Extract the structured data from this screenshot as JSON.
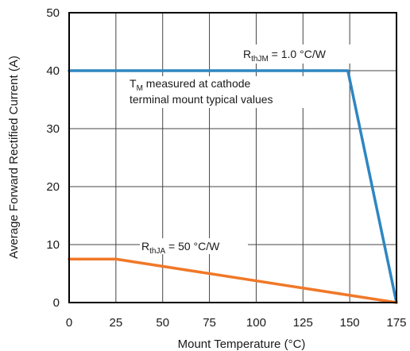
{
  "chart_data": {
    "type": "line",
    "xlabel": "Mount Temperature (°C)",
    "ylabel": "Average Forward Rectified Current (A)",
    "xlim": [
      0,
      175
    ],
    "ylim": [
      0,
      50
    ],
    "x_ticks": [
      0,
      25,
      50,
      75,
      100,
      125,
      150,
      175
    ],
    "y_ticks": [
      0,
      10,
      20,
      30,
      40,
      50
    ],
    "x_tick_labels": [
      "0",
      "25",
      "50",
      "75",
      "100",
      "125",
      "150",
      "175"
    ],
    "y_tick_labels": [
      "0",
      "10",
      "20",
      "30",
      "40",
      "50"
    ],
    "grid": true,
    "series": [
      {
        "label_main": "R",
        "label_sub": "thJM",
        "label_rest": " = 1.0 °C/W",
        "color": "#2e86c1",
        "x": [
          0,
          149,
          175
        ],
        "y": [
          40,
          40,
          0
        ]
      },
      {
        "label_main": "R",
        "label_sub": "thJA",
        "label_rest": " = 50 °C/W",
        "color": "#f07828",
        "x": [
          0,
          25,
          175
        ],
        "y": [
          7.5,
          7.5,
          0
        ]
      }
    ],
    "annotation": {
      "line1_main": "T",
      "line1_sub": "M",
      "line1_rest": " measured at cathode",
      "line2": "terminal mount typical values"
    }
  }
}
